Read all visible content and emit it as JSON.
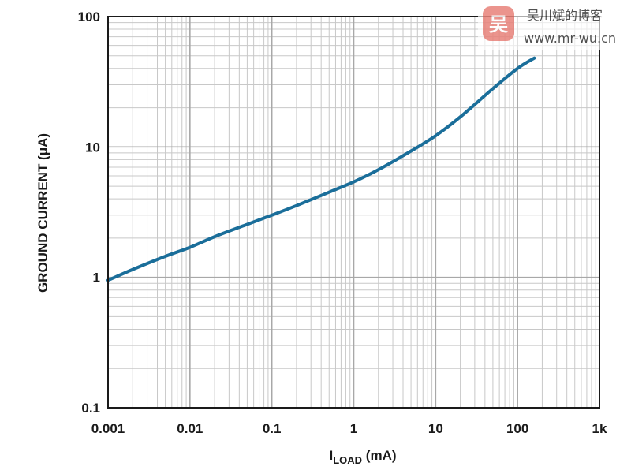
{
  "chart_data": {
    "type": "line",
    "xlabel": "I",
    "xlabel_sub": "LOAD",
    "xlabel_unit": " (mA)",
    "ylabel": "GROUND CURRENT (μA)",
    "x_scale": "log",
    "y_scale": "log",
    "xlim": [
      0.001,
      1000
    ],
    "ylim": [
      0.1,
      100
    ],
    "grid": true,
    "x_ticks": [
      {
        "value": 0.001,
        "label": "0.001"
      },
      {
        "value": 0.01,
        "label": "0.01"
      },
      {
        "value": 0.1,
        "label": "0.1"
      },
      {
        "value": 1,
        "label": "1"
      },
      {
        "value": 10,
        "label": "10"
      },
      {
        "value": 100,
        "label": "100"
      },
      {
        "value": 1000,
        "label": "1k"
      }
    ],
    "y_ticks": [
      {
        "value": 0.1,
        "label": "0.1"
      },
      {
        "value": 1,
        "label": "1"
      },
      {
        "value": 10,
        "label": "10"
      },
      {
        "value": 100,
        "label": "100"
      }
    ],
    "series": [
      {
        "color": "#1a6e9a",
        "x": [
          0.001,
          0.002,
          0.005,
          0.01,
          0.02,
          0.05,
          0.1,
          0.2,
          0.5,
          1,
          2,
          5,
          10,
          20,
          50,
          100,
          160
        ],
        "y": [
          0.95,
          1.15,
          1.45,
          1.7,
          2.05,
          2.55,
          3.0,
          3.55,
          4.5,
          5.4,
          6.7,
          9.3,
          12.2,
          17.0,
          28.0,
          40.0,
          48.0
        ]
      }
    ]
  },
  "watermark": {
    "logo_glyph": "吴",
    "name": "吴川斌的博客",
    "url": "www.mr-wu.cn"
  }
}
